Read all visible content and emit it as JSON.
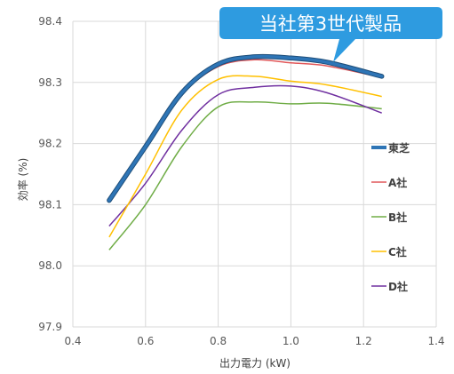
{
  "chart_data": {
    "type": "line",
    "xlabel": "出力電力 (kW)",
    "ylabel": "効率 (%)",
    "xlim": [
      0.4,
      1.4
    ],
    "ylim": [
      97.9,
      98.4
    ],
    "x_ticks": [
      "0.4",
      "0.6",
      "0.8",
      "1.0",
      "1.2",
      "1.4"
    ],
    "y_ticks": [
      "97.9",
      "98.0",
      "98.1",
      "98.2",
      "98.3",
      "98.4"
    ],
    "grid": true,
    "legend_position": "right",
    "callout": "当社第3世代製品",
    "series": [
      {
        "name": "東芝",
        "color": "#2e75b6",
        "points": [
          [
            0.5,
            98.107
          ],
          [
            0.6,
            98.195
          ],
          [
            0.7,
            98.283
          ],
          [
            0.8,
            98.33
          ],
          [
            0.9,
            98.342
          ],
          [
            1.0,
            98.34
          ],
          [
            1.1,
            98.333
          ],
          [
            1.25,
            98.31
          ]
        ]
      },
      {
        "name": "A社",
        "color": "#e15759",
        "points": [
          [
            0.5,
            98.11
          ],
          [
            0.6,
            98.193
          ],
          [
            0.7,
            98.28
          ],
          [
            0.8,
            98.326
          ],
          [
            0.9,
            98.337
          ],
          [
            1.0,
            98.332
          ],
          [
            1.1,
            98.327
          ],
          [
            1.25,
            98.308
          ]
        ]
      },
      {
        "name": "B社",
        "color": "#70ad47",
        "points": [
          [
            0.5,
            98.026
          ],
          [
            0.6,
            98.1
          ],
          [
            0.7,
            98.195
          ],
          [
            0.8,
            98.26
          ],
          [
            0.9,
            98.268
          ],
          [
            1.0,
            98.265
          ],
          [
            1.1,
            98.266
          ],
          [
            1.25,
            98.257
          ]
        ]
      },
      {
        "name": "C社",
        "color": "#ffc000",
        "points": [
          [
            0.5,
            98.047
          ],
          [
            0.6,
            98.15
          ],
          [
            0.7,
            98.255
          ],
          [
            0.8,
            98.305
          ],
          [
            0.9,
            98.31
          ],
          [
            1.0,
            98.302
          ],
          [
            1.1,
            98.296
          ],
          [
            1.25,
            98.277
          ]
        ]
      },
      {
        "name": "D社",
        "color": "#7030a0",
        "points": [
          [
            0.5,
            98.065
          ],
          [
            0.6,
            98.135
          ],
          [
            0.7,
            98.222
          ],
          [
            0.8,
            98.28
          ],
          [
            0.9,
            98.292
          ],
          [
            1.0,
            98.294
          ],
          [
            1.1,
            98.283
          ],
          [
            1.25,
            98.25
          ]
        ]
      }
    ]
  }
}
